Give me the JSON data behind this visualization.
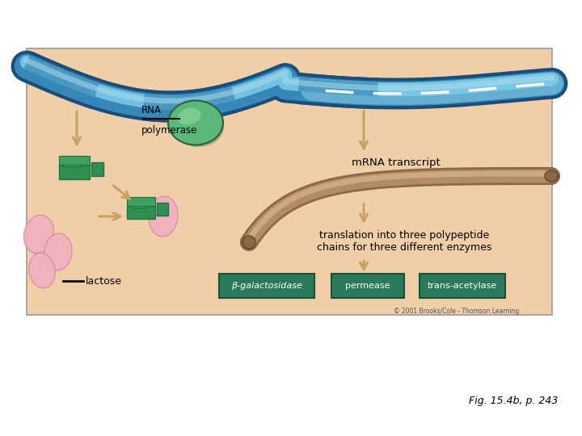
{
  "bg_color": "#f0cfa8",
  "outer_bg": "#ffffff",
  "title_text": "Fig. 15.4b, p. 243",
  "copyright_text": "© 2001 Brooks/Cole - Thomson Learning",
  "rna_label": "RNA",
  "polymerase_label": "polymerase",
  "mrna_label": "mRNA transcript",
  "translation_label": "translation into three polypeptide\nchains for three different enzymes",
  "lactose_label": "lactose",
  "enzyme1": "β-galactosidase",
  "enzyme2": "permease",
  "enzyme3": "trans-acetylase",
  "enzyme_bg": "#2a7a5a",
  "enzyme_text_color": "#ffffff",
  "dna_dark_blue": "#1a4e7a",
  "dna_light_blue": "#7ecce8",
  "dna_medium_blue": "#3a8fc0",
  "dna_pale_blue": "#b0ddf0",
  "green_dark": "#1e7040",
  "green_mid": "#2e9050",
  "green_light": "#5ab870",
  "pink_color": "#f0b0c0",
  "pink_dark": "#d890a0",
  "brown_dark": "#8a6848",
  "brown_mid": "#b89068",
  "brown_light": "#d8b888",
  "arrow_color": "#c8a060",
  "arrow_dark": "#a07840"
}
